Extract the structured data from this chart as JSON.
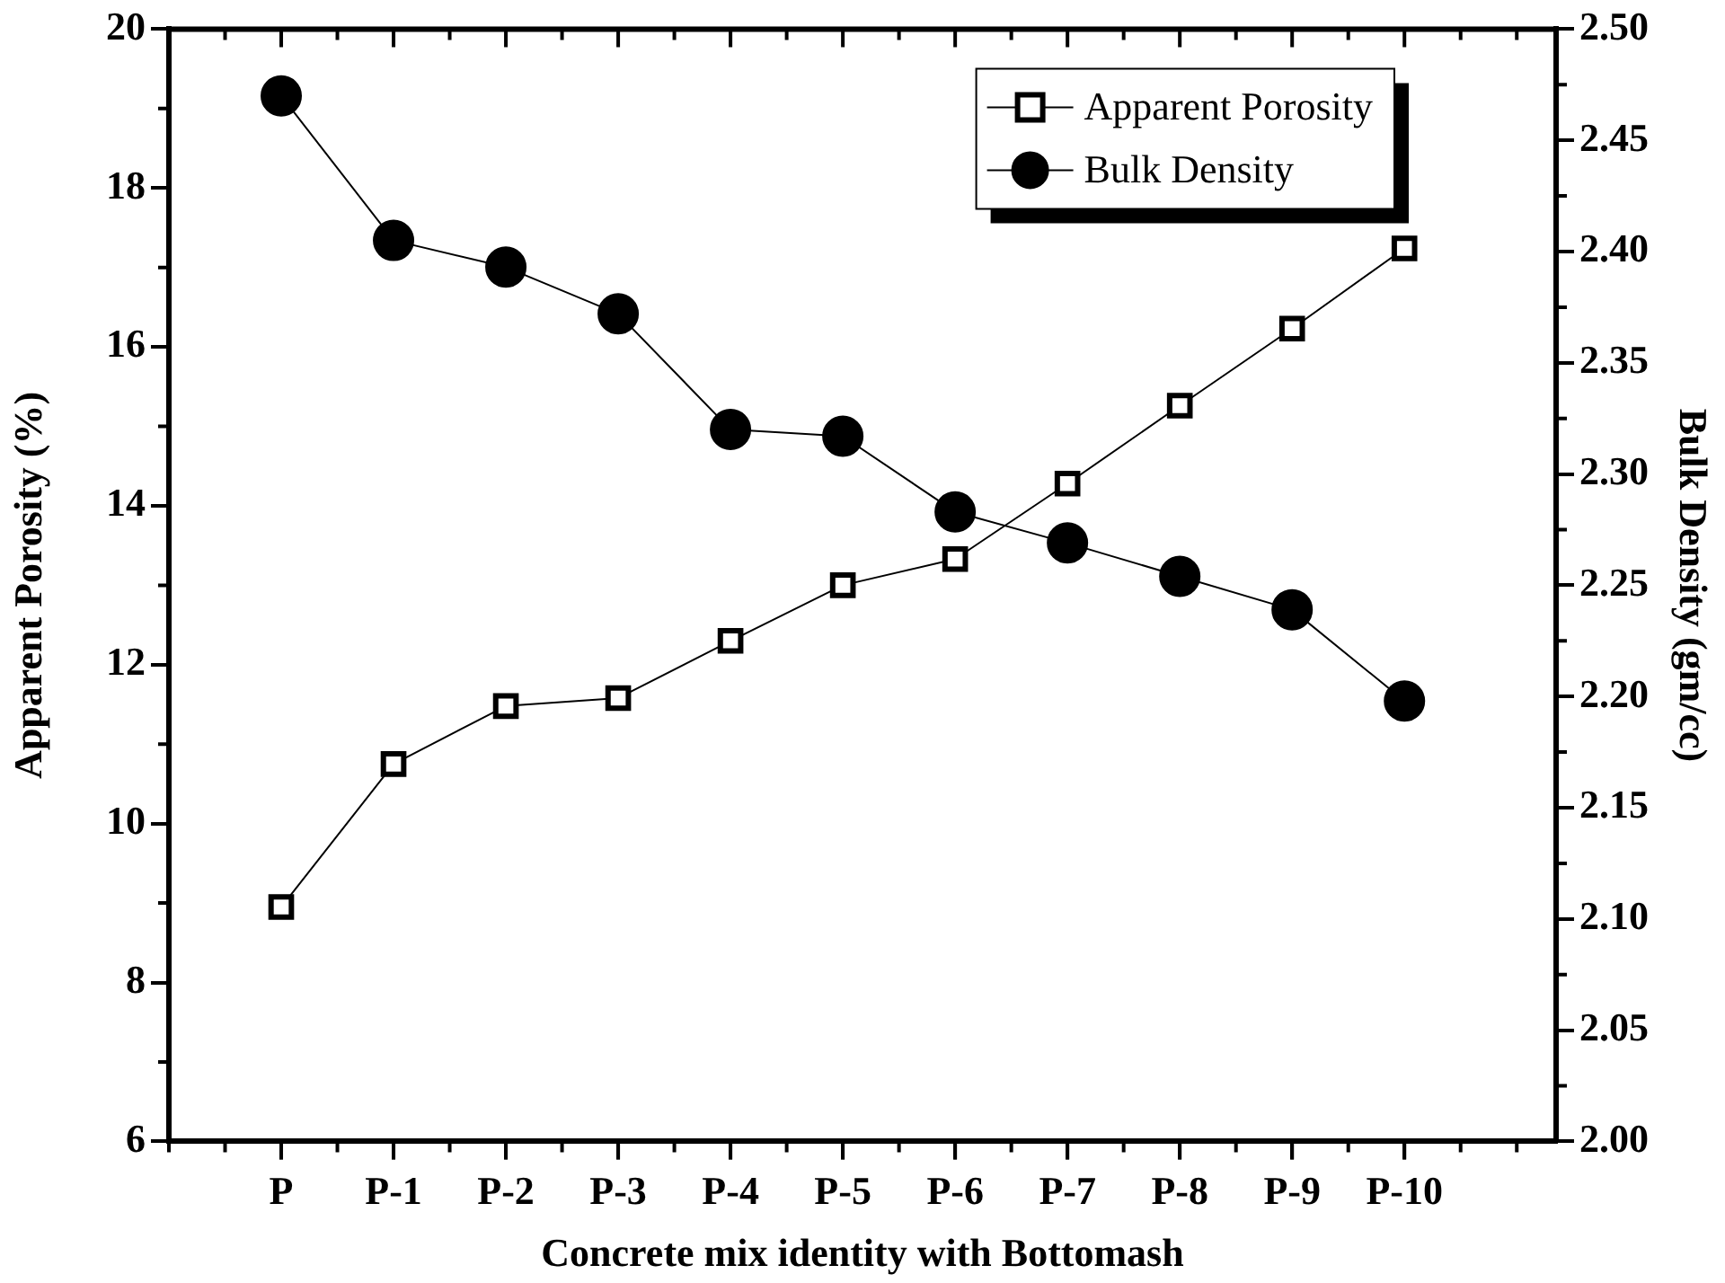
{
  "chart_data": {
    "type": "line",
    "xlabel": "Concrete mix identity with Bottomash",
    "ylabel": "Apparent Porosity (%)",
    "y2label": "Bulk Density (gm/cc)",
    "categories": [
      "P",
      "P-1",
      "P-2",
      "P-3",
      "P-4",
      "P-5",
      "P-6",
      "P-7",
      "P-8",
      "P-9",
      "P-10"
    ],
    "series": [
      {
        "name": "Apparent Porosity",
        "color": "#000000",
        "marker": "square",
        "values": [
          8.95,
          10.75,
          11.48,
          11.58,
          12.3,
          13.0,
          13.33,
          14.28,
          15.26,
          16.23,
          17.24
        ]
      },
      {
        "name": "Bulk Density",
        "color": "#000000",
        "marker": "circle",
        "axis": "y2",
        "values": [
          2.47,
          2.405,
          2.393,
          2.372,
          2.32,
          2.317,
          2.283,
          2.269,
          2.254,
          2.239,
          2.198
        ]
      }
    ],
    "ylim": [
      6,
      20
    ],
    "yticks": [
      6,
      8,
      10,
      12,
      14,
      16,
      18,
      20
    ],
    "y2lim": [
      2.0,
      2.5
    ],
    "y2ticks": [
      {
        "value": 2.0,
        "label": "2.00"
      },
      {
        "value": 2.05,
        "label": "2.05"
      },
      {
        "value": 2.1,
        "label": "2.10"
      },
      {
        "value": 2.15,
        "label": "2.15"
      },
      {
        "value": 2.2,
        "label": "2.20"
      },
      {
        "value": 2.25,
        "label": "2.25"
      },
      {
        "value": 2.3,
        "label": "2.30"
      },
      {
        "value": 2.35,
        "label": "2.35"
      },
      {
        "value": 2.4,
        "label": "2.40"
      },
      {
        "value": 2.45,
        "label": "2.45"
      },
      {
        "value": 2.5,
        "label": "2.50"
      }
    ],
    "legend": "top right",
    "grid": false,
    "line_style": "solid"
  }
}
